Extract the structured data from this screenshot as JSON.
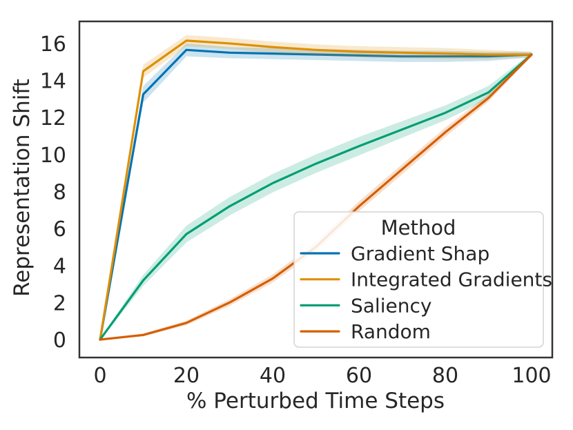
{
  "figure": {
    "background": "#ffffff",
    "text_color": "#262626",
    "spine_color": "#333333"
  },
  "chart_data": {
    "type": "line",
    "title": "",
    "xlabel": "% Perturbed Time Steps",
    "ylabel": "Representation Shift",
    "x": [
      0,
      10,
      20,
      30,
      40,
      50,
      60,
      70,
      80,
      90,
      100
    ],
    "series": [
      {
        "name": "Gradient Shap",
        "color": "#0173b2",
        "values": [
          0,
          13.25,
          15.65,
          15.5,
          15.45,
          15.4,
          15.35,
          15.3,
          15.3,
          15.3,
          15.4
        ],
        "band": [
          0.05,
          0.45,
          0.35,
          0.3,
          0.3,
          0.3,
          0.3,
          0.3,
          0.3,
          0.25,
          0.15
        ]
      },
      {
        "name": "Integrated Gradients",
        "color": "#de8f05",
        "values": [
          0,
          14.5,
          16.15,
          16.0,
          15.8,
          15.65,
          15.55,
          15.5,
          15.45,
          15.4,
          15.4
        ],
        "band": [
          0.05,
          0.35,
          0.3,
          0.3,
          0.3,
          0.3,
          0.3,
          0.3,
          0.3,
          0.25,
          0.15
        ]
      },
      {
        "name": "Saliency",
        "color": "#029e73",
        "values": [
          0,
          3.2,
          5.7,
          7.2,
          8.45,
          9.5,
          10.45,
          11.35,
          12.25,
          13.35,
          15.4
        ],
        "band": [
          0.05,
          0.3,
          0.45,
          0.5,
          0.5,
          0.5,
          0.5,
          0.45,
          0.4,
          0.35,
          0.1
        ]
      },
      {
        "name": "Random",
        "color": "#d55e00",
        "values": [
          0,
          0.25,
          0.9,
          2.0,
          3.3,
          5.0,
          7.2,
          9.2,
          11.2,
          13.05,
          15.4
        ],
        "band": [
          0.03,
          0.08,
          0.12,
          0.18,
          0.22,
          0.25,
          0.27,
          0.27,
          0.25,
          0.2,
          0.08
        ]
      }
    ],
    "xticks": [
      0,
      20,
      40,
      60,
      80,
      100
    ],
    "yticks": [
      0,
      2,
      4,
      6,
      8,
      10,
      12,
      14,
      16
    ],
    "xlim": [
      -4.8,
      104.8
    ],
    "ylim": [
      -0.97,
      17.19
    ],
    "grid": false,
    "legend": {
      "title": "Method",
      "position": "lower right"
    }
  }
}
